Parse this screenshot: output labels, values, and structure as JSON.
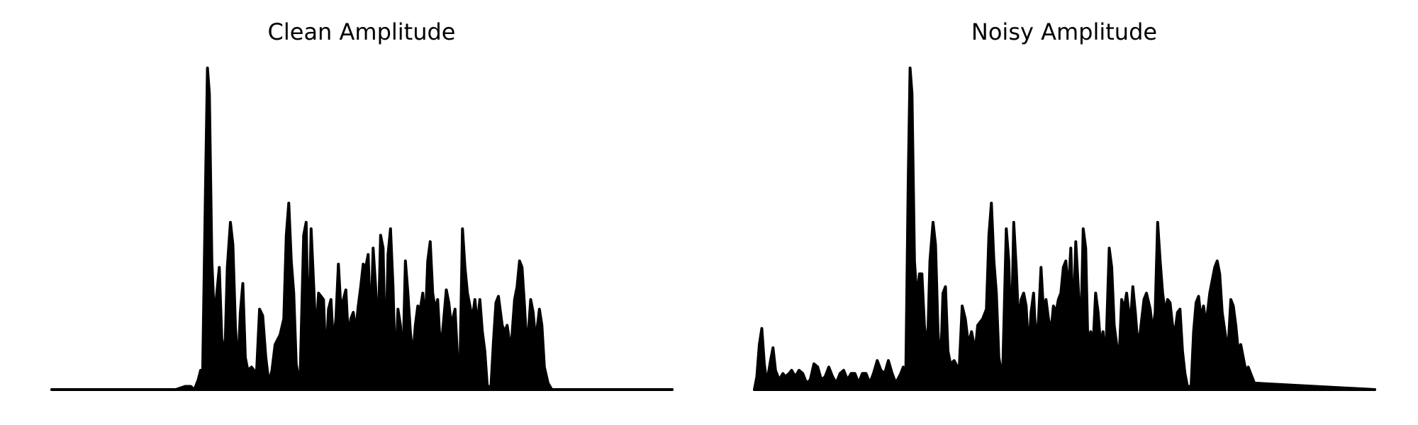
{
  "figure": {
    "background": "#ffffff",
    "line_color": "#000000"
  },
  "chart_data": [
    {
      "type": "area",
      "title": "Clean Amplitude",
      "xlabel": "",
      "ylabel": "",
      "axes_visible": false,
      "grid": false,
      "xlim": [
        0,
        1
      ],
      "ylim": [
        0,
        1
      ],
      "peaks": [
        [
          0.0,
          0.0
        ],
        [
          0.2,
          0.0
        ],
        [
          0.215,
          0.01
        ],
        [
          0.224,
          0.01
        ],
        [
          0.23,
          0.0
        ],
        [
          0.236,
          0.03
        ],
        [
          0.24,
          0.06
        ],
        [
          0.243,
          0.02
        ],
        [
          0.248,
          0.65
        ],
        [
          0.251,
          1.0
        ],
        [
          0.254,
          0.92
        ],
        [
          0.258,
          0.4
        ],
        [
          0.262,
          0.22
        ],
        [
          0.266,
          0.3
        ],
        [
          0.27,
          0.38
        ],
        [
          0.274,
          0.16
        ],
        [
          0.279,
          0.1
        ],
        [
          0.283,
          0.38
        ],
        [
          0.288,
          0.52
        ],
        [
          0.292,
          0.45
        ],
        [
          0.296,
          0.2
        ],
        [
          0.3,
          0.06
        ],
        [
          0.304,
          0.24
        ],
        [
          0.308,
          0.33
        ],
        [
          0.312,
          0.1
        ],
        [
          0.316,
          0.06
        ],
        [
          0.322,
          0.07
        ],
        [
          0.33,
          0.05
        ],
        [
          0.335,
          0.25
        ],
        [
          0.34,
          0.23
        ],
        [
          0.345,
          0.1
        ],
        [
          0.35,
          0.02
        ],
        [
          0.355,
          0.06
        ],
        [
          0.36,
          0.14
        ],
        [
          0.368,
          0.17
        ],
        [
          0.374,
          0.22
        ],
        [
          0.378,
          0.48
        ],
        [
          0.382,
          0.58
        ],
        [
          0.386,
          0.4
        ],
        [
          0.39,
          0.3
        ],
        [
          0.394,
          0.08
        ],
        [
          0.4,
          0.01
        ],
        [
          0.406,
          0.48
        ],
        [
          0.41,
          0.52
        ],
        [
          0.414,
          0.12
        ],
        [
          0.418,
          0.5
        ],
        [
          0.422,
          0.33
        ],
        [
          0.426,
          0.16
        ],
        [
          0.43,
          0.3
        ],
        [
          0.434,
          0.29
        ],
        [
          0.438,
          0.28
        ],
        [
          0.442,
          0.08
        ],
        [
          0.446,
          0.25
        ],
        [
          0.45,
          0.28
        ],
        [
          0.454,
          0.14
        ],
        [
          0.458,
          0.22
        ],
        [
          0.462,
          0.39
        ],
        [
          0.466,
          0.25
        ],
        [
          0.47,
          0.28
        ],
        [
          0.474,
          0.31
        ],
        [
          0.478,
          0.16
        ],
        [
          0.482,
          0.22
        ],
        [
          0.486,
          0.24
        ],
        [
          0.49,
          0.18
        ],
        [
          0.494,
          0.26
        ],
        [
          0.498,
          0.32
        ],
        [
          0.502,
          0.39
        ],
        [
          0.506,
          0.38
        ],
        [
          0.51,
          0.42
        ],
        [
          0.514,
          0.18
        ],
        [
          0.518,
          0.44
        ],
        [
          0.522,
          0.32
        ],
        [
          0.526,
          0.16
        ],
        [
          0.53,
          0.48
        ],
        [
          0.534,
          0.44
        ],
        [
          0.538,
          0.08
        ],
        [
          0.542,
          0.42
        ],
        [
          0.546,
          0.5
        ],
        [
          0.55,
          0.32
        ],
        [
          0.554,
          0.05
        ],
        [
          0.558,
          0.25
        ],
        [
          0.562,
          0.2
        ],
        [
          0.566,
          0.08
        ],
        [
          0.57,
          0.4
        ],
        [
          0.574,
          0.3
        ],
        [
          0.578,
          0.18
        ],
        [
          0.582,
          0.1
        ],
        [
          0.586,
          0.2
        ],
        [
          0.59,
          0.26
        ],
        [
          0.594,
          0.25
        ],
        [
          0.598,
          0.3
        ],
        [
          0.602,
          0.2
        ],
        [
          0.606,
          0.4
        ],
        [
          0.61,
          0.46
        ],
        [
          0.614,
          0.3
        ],
        [
          0.618,
          0.25
        ],
        [
          0.622,
          0.28
        ],
        [
          0.626,
          0.14
        ],
        [
          0.63,
          0.18
        ],
        [
          0.636,
          0.31
        ],
        [
          0.64,
          0.27
        ],
        [
          0.644,
          0.2
        ],
        [
          0.65,
          0.25
        ],
        [
          0.654,
          0.1
        ],
        [
          0.658,
          0.08
        ],
        [
          0.662,
          0.5
        ],
        [
          0.666,
          0.38
        ],
        [
          0.67,
          0.3
        ],
        [
          0.674,
          0.26
        ],
        [
          0.678,
          0.22
        ],
        [
          0.682,
          0.28
        ],
        [
          0.686,
          0.2
        ],
        [
          0.69,
          0.28
        ],
        [
          0.694,
          0.18
        ],
        [
          0.698,
          0.12
        ],
        [
          0.702,
          0.01
        ],
        [
          0.708,
          0.01
        ],
        [
          0.712,
          0.15
        ],
        [
          0.716,
          0.27
        ],
        [
          0.72,
          0.29
        ],
        [
          0.726,
          0.2
        ],
        [
          0.73,
          0.18
        ],
        [
          0.734,
          0.2
        ],
        [
          0.74,
          0.12
        ],
        [
          0.746,
          0.28
        ],
        [
          0.75,
          0.32
        ],
        [
          0.754,
          0.4
        ],
        [
          0.758,
          0.38
        ],
        [
          0.762,
          0.26
        ],
        [
          0.766,
          0.12
        ],
        [
          0.772,
          0.28
        ],
        [
          0.776,
          0.24
        ],
        [
          0.78,
          0.15
        ],
        [
          0.786,
          0.25
        ],
        [
          0.79,
          0.2
        ],
        [
          0.794,
          0.07
        ],
        [
          0.8,
          0.02
        ],
        [
          0.806,
          0.0
        ],
        [
          1.0,
          0.0
        ]
      ]
    },
    {
      "type": "area",
      "title": "Noisy Amplitude",
      "xlabel": "",
      "ylabel": "",
      "axes_visible": false,
      "grid": false,
      "xlim": [
        0,
        1
      ],
      "ylim": [
        0,
        1
      ],
      "peaks": [
        [
          0.0,
          0.0
        ],
        [
          0.004,
          0.04
        ],
        [
          0.008,
          0.14
        ],
        [
          0.012,
          0.19
        ],
        [
          0.016,
          0.08
        ],
        [
          0.02,
          0.02
        ],
        [
          0.026,
          0.09
        ],
        [
          0.03,
          0.13
        ],
        [
          0.034,
          0.06
        ],
        [
          0.04,
          0.03
        ],
        [
          0.046,
          0.05
        ],
        [
          0.05,
          0.04
        ],
        [
          0.056,
          0.05
        ],
        [
          0.06,
          0.06
        ],
        [
          0.066,
          0.04
        ],
        [
          0.072,
          0.06
        ],
        [
          0.078,
          0.05
        ],
        [
          0.084,
          0.02
        ],
        [
          0.09,
          0.03
        ],
        [
          0.096,
          0.08
        ],
        [
          0.102,
          0.07
        ],
        [
          0.108,
          0.03
        ],
        [
          0.114,
          0.04
        ],
        [
          0.12,
          0.07
        ],
        [
          0.126,
          0.04
        ],
        [
          0.132,
          0.02
        ],
        [
          0.138,
          0.05
        ],
        [
          0.144,
          0.06
        ],
        [
          0.15,
          0.03
        ],
        [
          0.156,
          0.05
        ],
        [
          0.162,
          0.05
        ],
        [
          0.168,
          0.02
        ],
        [
          0.174,
          0.05
        ],
        [
          0.18,
          0.05
        ],
        [
          0.186,
          0.02
        ],
        [
          0.192,
          0.05
        ],
        [
          0.198,
          0.09
        ],
        [
          0.204,
          0.06
        ],
        [
          0.21,
          0.05
        ],
        [
          0.216,
          0.09
        ],
        [
          0.222,
          0.05
        ],
        [
          0.228,
          0.02
        ],
        [
          0.236,
          0.05
        ],
        [
          0.24,
          0.07
        ],
        [
          0.244,
          0.03
        ],
        [
          0.248,
          0.65
        ],
        [
          0.251,
          1.0
        ],
        [
          0.254,
          0.92
        ],
        [
          0.258,
          0.4
        ],
        [
          0.262,
          0.28
        ],
        [
          0.266,
          0.36
        ],
        [
          0.27,
          0.36
        ],
        [
          0.274,
          0.2
        ],
        [
          0.279,
          0.12
        ],
        [
          0.283,
          0.4
        ],
        [
          0.288,
          0.52
        ],
        [
          0.292,
          0.45
        ],
        [
          0.296,
          0.18
        ],
        [
          0.3,
          0.06
        ],
        [
          0.304,
          0.3
        ],
        [
          0.308,
          0.32
        ],
        [
          0.312,
          0.12
        ],
        [
          0.316,
          0.08
        ],
        [
          0.322,
          0.09
        ],
        [
          0.33,
          0.06
        ],
        [
          0.335,
          0.26
        ],
        [
          0.34,
          0.22
        ],
        [
          0.345,
          0.14
        ],
        [
          0.35,
          0.18
        ],
        [
          0.356,
          0.12
        ],
        [
          0.36,
          0.2
        ],
        [
          0.368,
          0.22
        ],
        [
          0.374,
          0.25
        ],
        [
          0.378,
          0.48
        ],
        [
          0.382,
          0.58
        ],
        [
          0.386,
          0.4
        ],
        [
          0.39,
          0.3
        ],
        [
          0.394,
          0.1
        ],
        [
          0.4,
          0.03
        ],
        [
          0.406,
          0.5
        ],
        [
          0.41,
          0.4
        ],
        [
          0.414,
          0.14
        ],
        [
          0.418,
          0.52
        ],
        [
          0.422,
          0.38
        ],
        [
          0.426,
          0.2
        ],
        [
          0.43,
          0.28
        ],
        [
          0.434,
          0.3
        ],
        [
          0.438,
          0.26
        ],
        [
          0.442,
          0.12
        ],
        [
          0.446,
          0.24
        ],
        [
          0.45,
          0.3
        ],
        [
          0.454,
          0.14
        ],
        [
          0.458,
          0.22
        ],
        [
          0.462,
          0.38
        ],
        [
          0.466,
          0.24
        ],
        [
          0.47,
          0.28
        ],
        [
          0.474,
          0.22
        ],
        [
          0.478,
          0.18
        ],
        [
          0.482,
          0.26
        ],
        [
          0.486,
          0.24
        ],
        [
          0.49,
          0.28
        ],
        [
          0.494,
          0.3
        ],
        [
          0.498,
          0.38
        ],
        [
          0.502,
          0.4
        ],
        [
          0.506,
          0.3
        ],
        [
          0.51,
          0.44
        ],
        [
          0.514,
          0.2
        ],
        [
          0.518,
          0.46
        ],
        [
          0.522,
          0.32
        ],
        [
          0.526,
          0.16
        ],
        [
          0.53,
          0.5
        ],
        [
          0.534,
          0.44
        ],
        [
          0.538,
          0.1
        ],
        [
          0.542,
          0.18
        ],
        [
          0.546,
          0.14
        ],
        [
          0.55,
          0.3
        ],
        [
          0.554,
          0.24
        ],
        [
          0.558,
          0.14
        ],
        [
          0.562,
          0.18
        ],
        [
          0.566,
          0.08
        ],
        [
          0.572,
          0.44
        ],
        [
          0.576,
          0.38
        ],
        [
          0.58,
          0.2
        ],
        [
          0.584,
          0.14
        ],
        [
          0.588,
          0.1
        ],
        [
          0.592,
          0.28
        ],
        [
          0.596,
          0.25
        ],
        [
          0.6,
          0.3
        ],
        [
          0.606,
          0.2
        ],
        [
          0.61,
          0.32
        ],
        [
          0.614,
          0.24
        ],
        [
          0.618,
          0.14
        ],
        [
          0.622,
          0.18
        ],
        [
          0.628,
          0.28
        ],
        [
          0.632,
          0.3
        ],
        [
          0.638,
          0.25
        ],
        [
          0.642,
          0.18
        ],
        [
          0.646,
          0.24
        ],
        [
          0.65,
          0.52
        ],
        [
          0.654,
          0.4
        ],
        [
          0.658,
          0.3
        ],
        [
          0.662,
          0.24
        ],
        [
          0.666,
          0.28
        ],
        [
          0.67,
          0.27
        ],
        [
          0.674,
          0.2
        ],
        [
          0.678,
          0.18
        ],
        [
          0.682,
          0.24
        ],
        [
          0.686,
          0.25
        ],
        [
          0.69,
          0.12
        ],
        [
          0.694,
          0.05
        ],
        [
          0.698,
          0.01
        ],
        [
          0.704,
          0.01
        ],
        [
          0.708,
          0.18
        ],
        [
          0.712,
          0.27
        ],
        [
          0.716,
          0.29
        ],
        [
          0.72,
          0.22
        ],
        [
          0.724,
          0.26
        ],
        [
          0.728,
          0.2
        ],
        [
          0.734,
          0.3
        ],
        [
          0.738,
          0.34
        ],
        [
          0.742,
          0.38
        ],
        [
          0.746,
          0.4
        ],
        [
          0.75,
          0.36
        ],
        [
          0.754,
          0.24
        ],
        [
          0.76,
          0.16
        ],
        [
          0.764,
          0.14
        ],
        [
          0.768,
          0.28
        ],
        [
          0.772,
          0.26
        ],
        [
          0.776,
          0.2
        ],
        [
          0.78,
          0.12
        ],
        [
          0.784,
          0.14
        ],
        [
          0.788,
          0.1
        ],
        [
          0.792,
          0.06
        ],
        [
          0.796,
          0.07
        ],
        [
          0.8,
          0.05
        ],
        [
          0.806,
          0.02
        ],
        [
          1.0,
          0.0
        ]
      ]
    }
  ]
}
